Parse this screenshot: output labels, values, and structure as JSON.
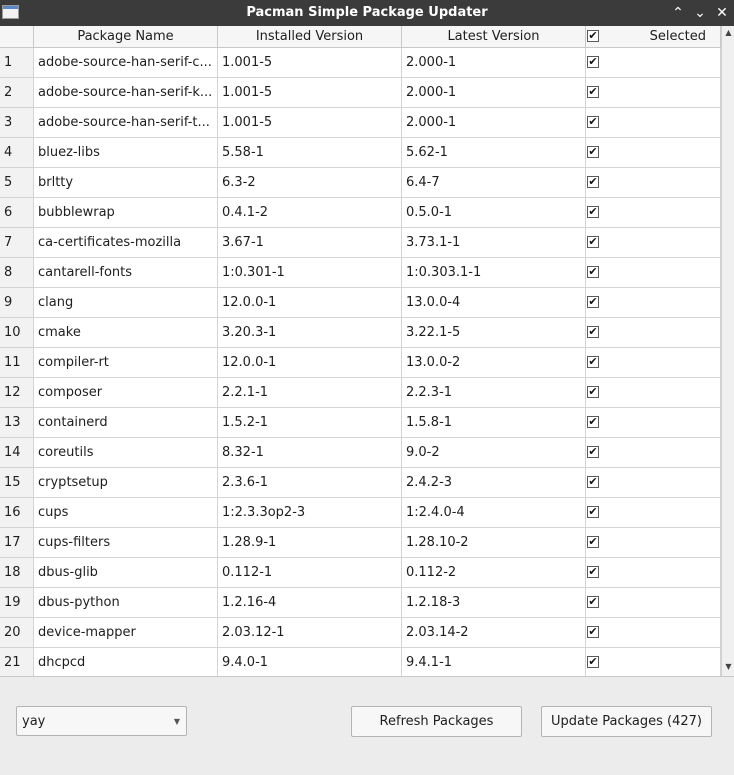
{
  "window": {
    "title": "Pacman Simple Package Updater",
    "controls": {
      "minimize": "⌃",
      "maximize": "⌄",
      "close": "✕"
    }
  },
  "table": {
    "columns": {
      "name": "Package Name",
      "installed": "Installed Version",
      "latest": "Latest Version",
      "selected": "Selected"
    },
    "header_checkbox": "✔",
    "rows": [
      {
        "index": "1",
        "name": "adobe-source-han-serif-c...",
        "installed": "1.001-5",
        "latest": "2.000-1",
        "checked": "✔"
      },
      {
        "index": "2",
        "name": "adobe-source-han-serif-k...",
        "installed": "1.001-5",
        "latest": "2.000-1",
        "checked": "✔"
      },
      {
        "index": "3",
        "name": "adobe-source-han-serif-t...",
        "installed": "1.001-5",
        "latest": "2.000-1",
        "checked": "✔"
      },
      {
        "index": "4",
        "name": "bluez-libs",
        "installed": "5.58-1",
        "latest": "5.62-1",
        "checked": "✔"
      },
      {
        "index": "5",
        "name": "brltty",
        "installed": "6.3-2",
        "latest": "6.4-7",
        "checked": "✔"
      },
      {
        "index": "6",
        "name": "bubblewrap",
        "installed": "0.4.1-2",
        "latest": "0.5.0-1",
        "checked": "✔"
      },
      {
        "index": "7",
        "name": "ca-certificates-mozilla",
        "installed": "3.67-1",
        "latest": "3.73.1-1",
        "checked": "✔"
      },
      {
        "index": "8",
        "name": "cantarell-fonts",
        "installed": "1:0.301-1",
        "latest": "1:0.303.1-1",
        "checked": "✔"
      },
      {
        "index": "9",
        "name": "clang",
        "installed": "12.0.0-1",
        "latest": "13.0.0-4",
        "checked": "✔"
      },
      {
        "index": "10",
        "name": "cmake",
        "installed": "3.20.3-1",
        "latest": "3.22.1-5",
        "checked": "✔"
      },
      {
        "index": "11",
        "name": "compiler-rt",
        "installed": "12.0.0-1",
        "latest": "13.0.0-2",
        "checked": "✔"
      },
      {
        "index": "12",
        "name": "composer",
        "installed": "2.2.1-1",
        "latest": "2.2.3-1",
        "checked": "✔"
      },
      {
        "index": "13",
        "name": "containerd",
        "installed": "1.5.2-1",
        "latest": "1.5.8-1",
        "checked": "✔"
      },
      {
        "index": "14",
        "name": "coreutils",
        "installed": "8.32-1",
        "latest": "9.0-2",
        "checked": "✔"
      },
      {
        "index": "15",
        "name": "cryptsetup",
        "installed": "2.3.6-1",
        "latest": "2.4.2-3",
        "checked": "✔"
      },
      {
        "index": "16",
        "name": "cups",
        "installed": "1:2.3.3op2-3",
        "latest": "1:2.4.0-4",
        "checked": "✔"
      },
      {
        "index": "17",
        "name": "cups-filters",
        "installed": "1.28.9-1",
        "latest": "1.28.10-2",
        "checked": "✔"
      },
      {
        "index": "18",
        "name": "dbus-glib",
        "installed": "0.112-1",
        "latest": "0.112-2",
        "checked": "✔"
      },
      {
        "index": "19",
        "name": "dbus-python",
        "installed": "1.2.16-4",
        "latest": "1.2.18-3",
        "checked": "✔"
      },
      {
        "index": "20",
        "name": "device-mapper",
        "installed": "2.03.12-1",
        "latest": "2.03.14-2",
        "checked": "✔"
      },
      {
        "index": "21",
        "name": "dhcpcd",
        "installed": "9.4.0-1",
        "latest": "9.4.1-1",
        "checked": "✔"
      }
    ]
  },
  "scrollbar": {
    "up": "▲",
    "down": "▼"
  },
  "footer": {
    "helper_select": {
      "value": "yay",
      "arrow": "▼"
    },
    "refresh_label": "Refresh Packages",
    "update_label": "Update Packages (427)"
  }
}
